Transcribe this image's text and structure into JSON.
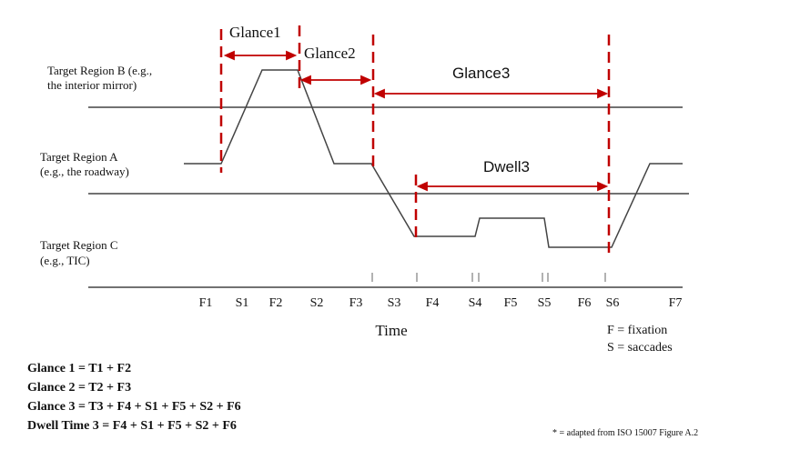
{
  "regions": {
    "b": {
      "line1": "Target Region B (e.g.,",
      "line2": "the interior mirror)"
    },
    "a": {
      "line1": "Target Region A",
      "line2": "(e.g., the roadway)"
    },
    "c": {
      "line1": "Target Region C",
      "line2": "(e.g., TIC)"
    }
  },
  "annotations": {
    "glance1": "Glance1",
    "glance2": "Glance2",
    "glance3": "Glance3",
    "dwell3": "Dwell3"
  },
  "timeline": {
    "labels": [
      "F1",
      "S1",
      "F2",
      "S2",
      "F3",
      "S3",
      "F4",
      "S4",
      "F5",
      "S5",
      "F6",
      "S6",
      "F7"
    ],
    "axis_title": "Time"
  },
  "legend": {
    "fixation": "F = fixation",
    "saccades": "S = saccades"
  },
  "formulas": [
    "Glance 1 = T1 + F2",
    "Glance 2 = T2 + F3",
    "Glance 3 = T3 + F4 + S1 + F5 + S2 + F6",
    "Dwell Time 3 = F4 + S1 + F5 + S2 + F6"
  ],
  "footnote": "* = adapted from ISO 15007 Figure A.2",
  "colors": {
    "line": "#444444",
    "marker": "#c00000",
    "text": "#111111"
  }
}
